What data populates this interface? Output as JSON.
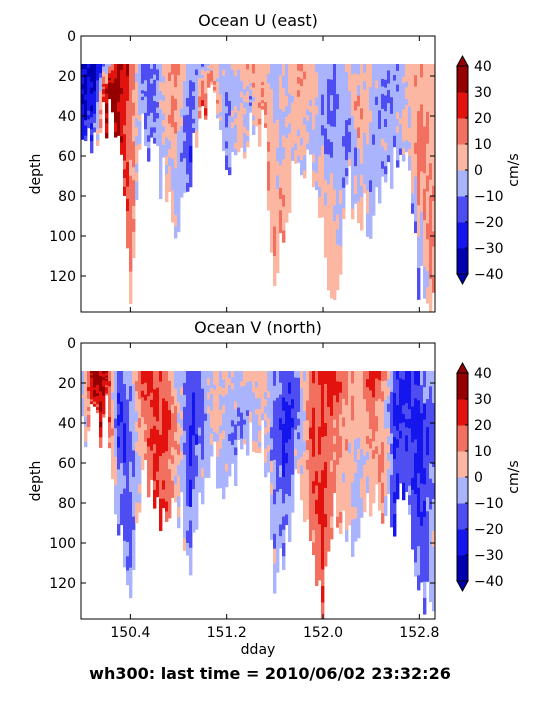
{
  "footer": "wh300: last time = 2010/06/02 23:32:26",
  "palette": {
    "levels": [
      -40,
      -30,
      -20,
      -10,
      0,
      10,
      20,
      30,
      40
    ],
    "colors": [
      "#0000b0",
      "#1515ee",
      "#4d4df2",
      "#a9b4fc",
      "#fbb7a2",
      "#f2705f",
      "#e2130e",
      "#950000"
    ]
  },
  "chart_data": [
    {
      "type": "heatmap",
      "title": "Ocean U (east)",
      "ylabel": "depth",
      "xlabel": "",
      "colorbar_label": "cm/s",
      "xlim": [
        149.99,
        152.93
      ],
      "ylim": [
        138,
        0
      ],
      "yticks": [
        0,
        20,
        40,
        60,
        80,
        100,
        120
      ],
      "xticks": [
        150.4,
        151.2,
        152.0,
        152.8
      ],
      "xtick_labels_shown": false,
      "cbar_ticks": [
        40,
        30,
        20,
        10,
        0,
        -10,
        -20,
        -30,
        -40
      ],
      "top_depth": 14,
      "x": [
        150.0,
        150.1,
        150.2,
        150.3,
        150.4,
        150.5,
        150.6,
        150.7,
        150.8,
        150.9,
        151.0,
        151.1,
        151.2,
        151.3,
        151.4,
        151.5,
        151.6,
        151.7,
        151.8,
        151.9,
        152.0,
        152.1,
        152.2,
        152.3,
        152.4,
        152.5,
        152.6,
        152.7,
        152.8,
        152.9
      ],
      "bottom_depth": [
        58,
        45,
        42,
        45,
        135,
        48,
        62,
        75,
        98,
        64,
        38,
        35,
        70,
        55,
        48,
        40,
        118,
        85,
        62,
        58,
        105,
        138,
        72,
        92,
        88,
        82,
        58,
        62,
        125,
        138
      ],
      "profiles": [
        [
          -30,
          -30,
          -30,
          -20
        ],
        [
          -40,
          -30,
          -20,
          -10
        ],
        [
          -10,
          25,
          35,
          30
        ],
        [
          35,
          35,
          30,
          35
        ],
        [
          25,
          15,
          15,
          5
        ],
        [
          -15,
          -5,
          -10,
          -5
        ],
        [
          -10,
          -15,
          -10,
          -15
        ],
        [
          5,
          10,
          0,
          5
        ],
        [
          15,
          5,
          -5,
          -5
        ],
        [
          -5,
          -15,
          -20,
          -15
        ],
        [
          -10,
          5,
          15,
          25
        ],
        [
          10,
          5,
          15,
          5
        ],
        [
          -5,
          -10,
          -5,
          -15
        ],
        [
          5,
          -5,
          5,
          5
        ],
        [
          15,
          5,
          -5,
          -5
        ],
        [
          5,
          5,
          15,
          5
        ],
        [
          -5,
          5,
          5,
          15
        ],
        [
          5,
          -5,
          5,
          5
        ],
        [
          15,
          5,
          5,
          -5
        ],
        [
          5,
          5,
          -5,
          -5
        ],
        [
          -5,
          -15,
          5,
          5
        ],
        [
          -15,
          -5,
          5,
          5
        ],
        [
          5,
          -5,
          -15,
          -5
        ],
        [
          -5,
          15,
          -5,
          5
        ],
        [
          5,
          -5,
          -5,
          -5
        ],
        [
          -5,
          -15,
          -5,
          -5
        ],
        [
          -15,
          -5,
          -5,
          -15
        ],
        [
          5,
          -5,
          5,
          -5
        ],
        [
          5,
          15,
          5,
          -15
        ],
        [
          5,
          5,
          15,
          5
        ]
      ]
    },
    {
      "type": "heatmap",
      "title": "Ocean V (north)",
      "ylabel": "depth",
      "xlabel": "dday",
      "colorbar_label": "cm/s",
      "xlim": [
        149.99,
        152.93
      ],
      "ylim": [
        138,
        0
      ],
      "yticks": [
        0,
        20,
        40,
        60,
        80,
        100,
        120
      ],
      "xticks": [
        150.4,
        151.2,
        152.0,
        152.8
      ],
      "xtick_labels_shown": true,
      "cbar_ticks": [
        40,
        30,
        20,
        10,
        0,
        -10,
        -20,
        -30,
        -40
      ],
      "top_depth": 14,
      "x": [
        150.0,
        150.1,
        150.2,
        150.3,
        150.4,
        150.5,
        150.6,
        150.7,
        150.8,
        150.9,
        151.0,
        151.1,
        151.2,
        151.3,
        151.4,
        151.5,
        151.6,
        151.7,
        151.8,
        151.9,
        152.0,
        152.1,
        152.2,
        152.3,
        152.4,
        152.5,
        152.6,
        152.7,
        152.8,
        152.9
      ],
      "bottom_depth": [
        44,
        42,
        38,
        92,
        135,
        55,
        75,
        88,
        80,
        110,
        72,
        58,
        78,
        60,
        52,
        40,
        118,
        98,
        62,
        108,
        135,
        82,
        92,
        102,
        80,
        82,
        88,
        72,
        120,
        132
      ],
      "profiles": [
        [
          -5,
          -5,
          -5,
          -5
        ],
        [
          35,
          35,
          30,
          20
        ],
        [
          35,
          30,
          25,
          15
        ],
        [
          -15,
          -25,
          -5,
          -15
        ],
        [
          -5,
          -15,
          -15,
          -5
        ],
        [
          25,
          15,
          5,
          5
        ],
        [
          25,
          20,
          25,
          25
        ],
        [
          15,
          25,
          15,
          25
        ],
        [
          -5,
          5,
          5,
          -5
        ],
        [
          -15,
          -25,
          -15,
          -5
        ],
        [
          -5,
          -15,
          -5,
          -5
        ],
        [
          5,
          5,
          5,
          -5
        ],
        [
          5,
          -5,
          -5,
          -5
        ],
        [
          -5,
          -5,
          -15,
          -5
        ],
        [
          5,
          -5,
          -5,
          5
        ],
        [
          5,
          5,
          5,
          -5
        ],
        [
          -5,
          -15,
          -5,
          -5
        ],
        [
          -15,
          -25,
          -15,
          -5
        ],
        [
          -5,
          -15,
          -5,
          5
        ],
        [
          15,
          25,
          15,
          5
        ],
        [
          25,
          15,
          25,
          15
        ],
        [
          25,
          15,
          5,
          15
        ],
        [
          15,
          5,
          5,
          -5
        ],
        [
          5,
          5,
          -5,
          -5
        ],
        [
          25,
          15,
          5,
          5
        ],
        [
          15,
          5,
          15,
          5
        ],
        [
          -15,
          -25,
          -15,
          -25
        ],
        [
          -25,
          -25,
          -15,
          -15
        ],
        [
          -15,
          -25,
          -25,
          -5
        ],
        [
          -5,
          -15,
          -5,
          -5
        ]
      ]
    }
  ]
}
